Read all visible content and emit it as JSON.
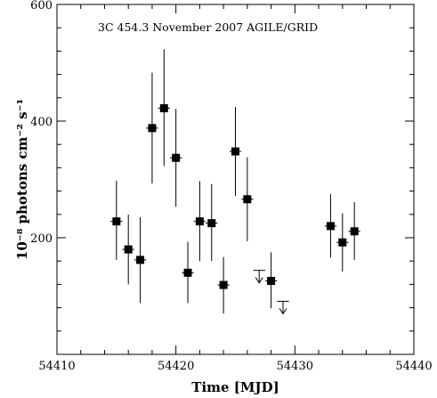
{
  "chart_data": {
    "type": "scatter",
    "title": "3C 454.3 November 2007 AGILE/GRID",
    "xlabel": "Time [MJD]",
    "ylabel": "10⁻⁸ photons cm⁻² s⁻¹",
    "xlim": [
      54410,
      54440
    ],
    "ylim": [
      0,
      600
    ],
    "x_ticks": [
      "54410",
      "54420",
      "54430",
      "54440"
    ],
    "y_ticks": [
      "200",
      "400",
      "600"
    ],
    "grid": false,
    "points": [
      {
        "x": 54415,
        "y": 228,
        "err_low": 162,
        "err_high": 298
      },
      {
        "x": 54416,
        "y": 180,
        "err_low": 120,
        "err_high": 240
      },
      {
        "x": 54417,
        "y": 162,
        "err_low": 88,
        "err_high": 235
      },
      {
        "x": 54418,
        "y": 388,
        "err_low": 293,
        "err_high": 483
      },
      {
        "x": 54419,
        "y": 422,
        "err_low": 323,
        "err_high": 523
      },
      {
        "x": 54420,
        "y": 337,
        "err_low": 253,
        "err_high": 421
      },
      {
        "x": 54421,
        "y": 140,
        "err_low": 88,
        "err_high": 193
      },
      {
        "x": 54422,
        "y": 228,
        "err_low": 160,
        "err_high": 297
      },
      {
        "x": 54423,
        "y": 225,
        "err_low": 160,
        "err_high": 292
      },
      {
        "x": 54424,
        "y": 119,
        "err_low": 70,
        "err_high": 167
      },
      {
        "x": 54425,
        "y": 348,
        "err_low": 272,
        "err_high": 424
      },
      {
        "x": 54426,
        "y": 266,
        "err_low": 194,
        "err_high": 338
      },
      {
        "x": 54428,
        "y": 126,
        "err_low": 79,
        "err_high": 175
      },
      {
        "x": 54433,
        "y": 220,
        "err_low": 166,
        "err_high": 275
      },
      {
        "x": 54434,
        "y": 192,
        "err_low": 142,
        "err_high": 242
      },
      {
        "x": 54435,
        "y": 211,
        "err_low": 162,
        "err_high": 261
      }
    ],
    "upper_limits": [
      {
        "x": 54427,
        "y": 144
      },
      {
        "x": 54429,
        "y": 91
      }
    ]
  }
}
